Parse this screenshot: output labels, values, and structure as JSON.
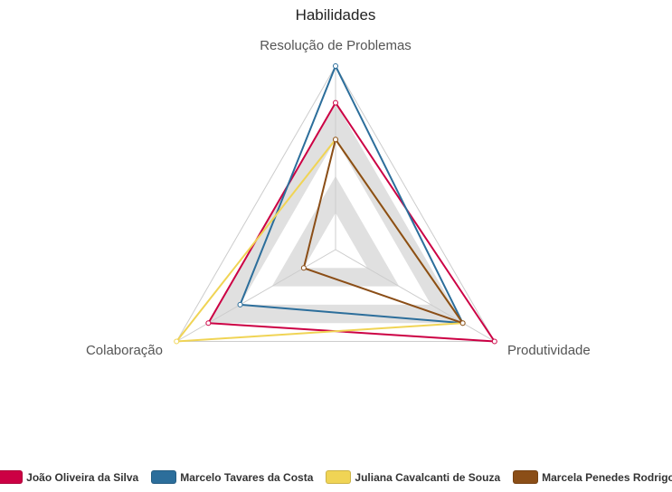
{
  "chart_data": {
    "type": "radar",
    "title": "Habilidades",
    "axes": [
      "Resolução de Problemas",
      "Produtividade",
      "Colaboração"
    ],
    "rlim": [
      0,
      5
    ],
    "rings": 5,
    "band_fill": "#e0e0e0",
    "grid_color": "#cccccc",
    "legend_position": "bottom",
    "series": [
      {
        "name": "João Oliveira da Silva",
        "color": "#cc0044",
        "values": [
          4,
          5,
          4
        ]
      },
      {
        "name": "Marcelo Tavares da Costa",
        "color": "#2c6e9b",
        "values": [
          5,
          4,
          3
        ]
      },
      {
        "name": "Juliana Cavalcanti de Souza",
        "color": "#f0d455",
        "values": [
          3,
          4,
          5
        ]
      },
      {
        "name": "Marcela Penedes Rodrigo",
        "color": "#8b4e17",
        "values": [
          3,
          4,
          1
        ]
      }
    ]
  }
}
